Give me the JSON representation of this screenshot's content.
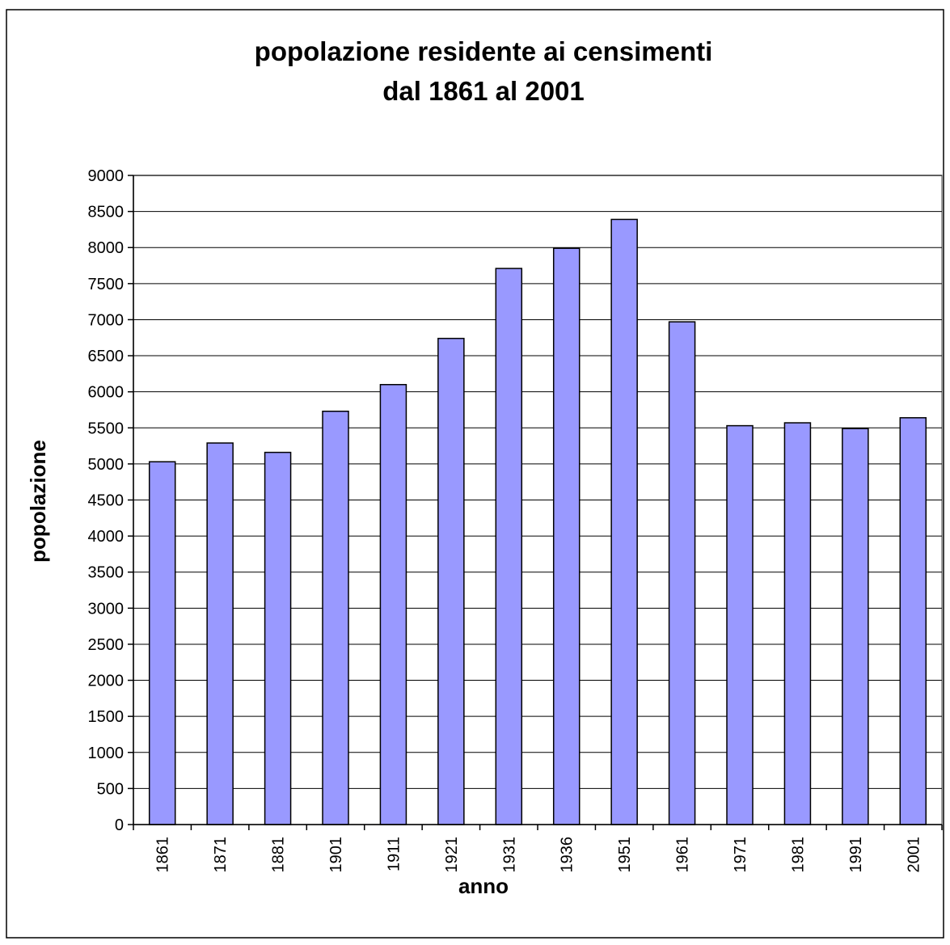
{
  "chart_data": {
    "type": "bar",
    "title": [
      "popolazione residente ai censimenti",
      "dal 1861 al 2001"
    ],
    "x_label": "anno",
    "y_label": "popolazione",
    "categories": [
      "1861",
      "1871",
      "1881",
      "1901",
      "1911",
      "1921",
      "1931",
      "1936",
      "1951",
      "1961",
      "1971",
      "1981",
      "1991",
      "2001"
    ],
    "values": [
      5030,
      5290,
      5160,
      5730,
      6100,
      6740,
      7710,
      7990,
      8390,
      6970,
      5530,
      5570,
      5490,
      5640
    ],
    "color": "#9999ff",
    "ylim": [
      0,
      9000
    ],
    "yticks": [
      0,
      500,
      1000,
      1500,
      2000,
      2500,
      3000,
      3500,
      4000,
      4500,
      5000,
      5500,
      6000,
      6500,
      7000,
      7500,
      8000,
      8500,
      9000
    ],
    "grid": true
  }
}
